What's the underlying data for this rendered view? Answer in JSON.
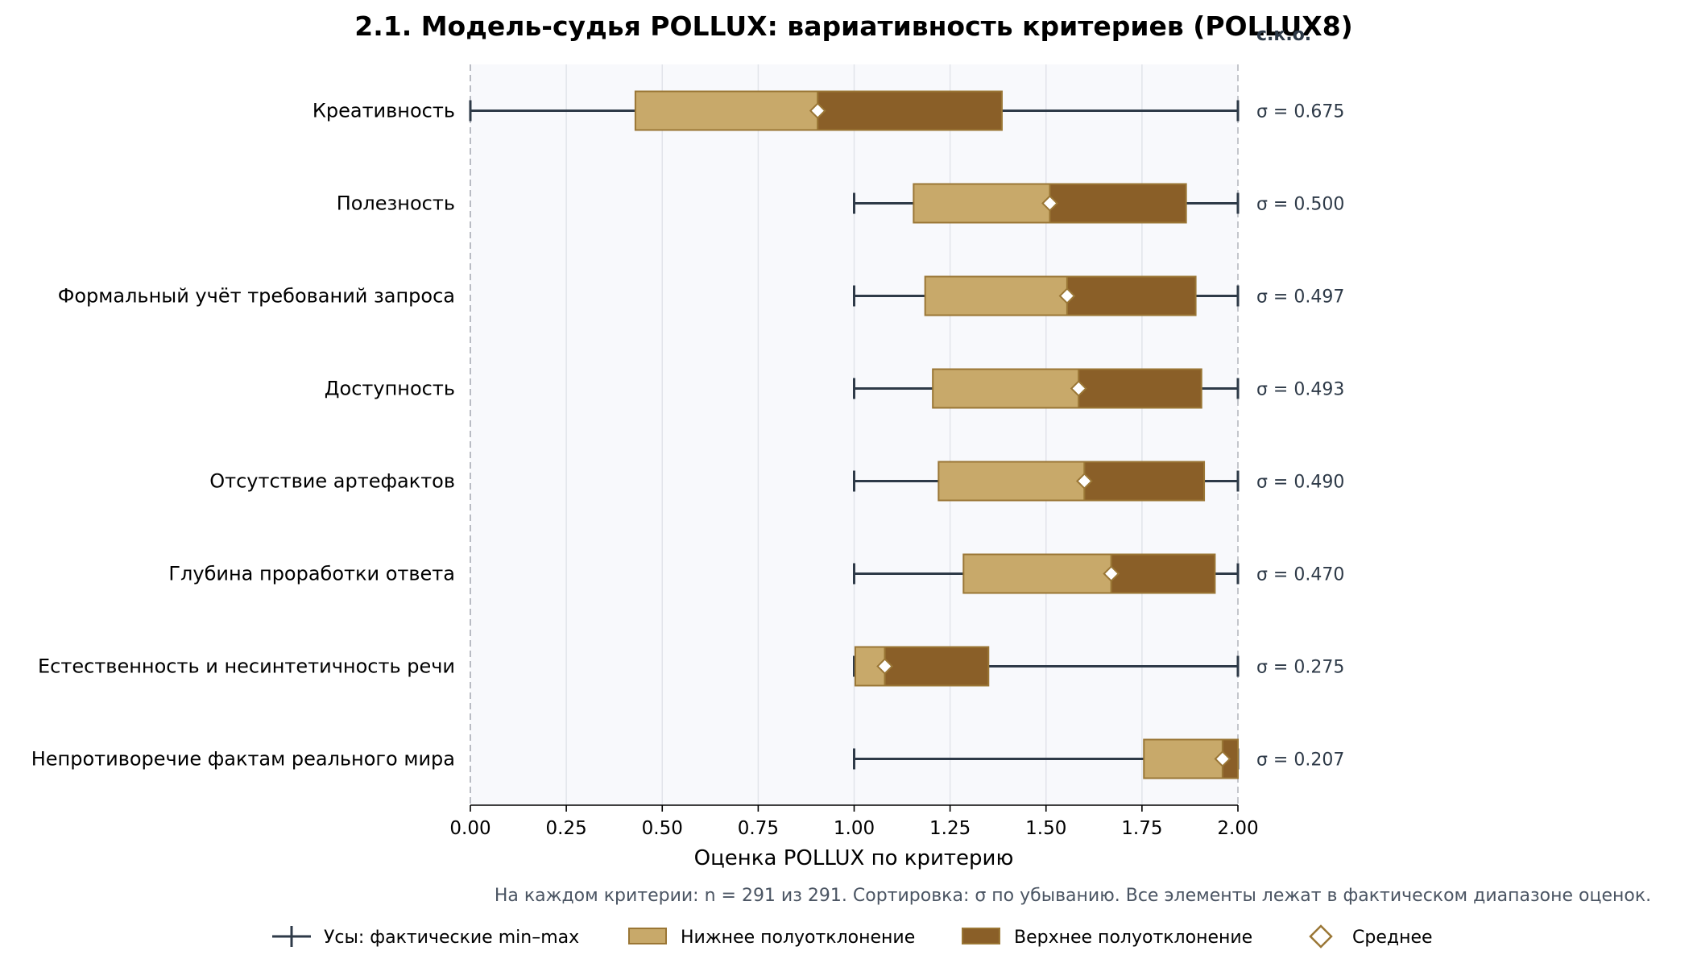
{
  "chart_data": {
    "type": "boxplot-horizontal",
    "title": "2.1. Модель-судья POLLUX: вариативность критериев (POLLUX8)",
    "xlabel": "Оценка POLLUX по критерию",
    "xlim": [
      0,
      2
    ],
    "xticks": [
      "0.00",
      "0.25",
      "0.50",
      "0.75",
      "1.00",
      "1.25",
      "1.50",
      "1.75",
      "2.00"
    ],
    "xtick_values": [
      0,
      0.25,
      0.5,
      0.75,
      1.0,
      1.25,
      1.5,
      1.75,
      2.0
    ],
    "grid": "vertical",
    "sigma_header": "с.к.о.",
    "rows": [
      {
        "label": "Креативность",
        "min": 0.0,
        "low": 0.43,
        "mean": 0.905,
        "high": 1.385,
        "max": 2.0,
        "sigma": "σ = 0.675"
      },
      {
        "label": "Полезность",
        "min": 1.0,
        "low": 1.155,
        "mean": 1.51,
        "high": 1.865,
        "max": 2.0,
        "sigma": "σ = 0.500"
      },
      {
        "label": "Формальный учёт требований запроса",
        "min": 1.0,
        "low": 1.185,
        "mean": 1.555,
        "high": 1.89,
        "max": 2.0,
        "sigma": "σ = 0.497"
      },
      {
        "label": "Доступность",
        "min": 1.0,
        "low": 1.205,
        "mean": 1.585,
        "high": 1.905,
        "max": 2.0,
        "sigma": "σ = 0.493"
      },
      {
        "label": "Отсутствие артефактов",
        "min": 1.0,
        "low": 1.22,
        "mean": 1.6,
        "high": 1.912,
        "max": 2.0,
        "sigma": "σ = 0.490"
      },
      {
        "label": "Глубина проработки ответа",
        "min": 1.0,
        "low": 1.285,
        "mean": 1.67,
        "high": 1.94,
        "max": 2.0,
        "sigma": "σ = 0.470"
      },
      {
        "label": "Естественность и несинтетичность речи",
        "min": 1.0,
        "low": 1.003,
        "mean": 1.08,
        "high": 1.35,
        "max": 2.0,
        "sigma": "σ = 0.275"
      },
      {
        "label": "Непротиворечие фактам реального мира",
        "min": 1.0,
        "low": 1.755,
        "mean": 1.96,
        "high": 2.0,
        "max": 2.0,
        "sigma": "σ = 0.207"
      }
    ],
    "note": "На каждом критерии: n = 291 из 291. Сортировка: σ по убыванию. Все элементы лежат в фактическом диапазоне оценок.",
    "legend": {
      "placement": "bottom",
      "whiskers": "Усы: фактические min–max",
      "lower": "Нижнее полуотклонение",
      "upper": "Верхнее полуотклонение",
      "mean": "Среднее"
    },
    "colors": {
      "lower_fill": "#c8a96a",
      "upper_fill": "#8a5f28",
      "box_edge": "#9a7635",
      "whisker": "#2e3a48",
      "plot_bg": "#f8f9fc",
      "grid": "#e2e4ea"
    }
  }
}
